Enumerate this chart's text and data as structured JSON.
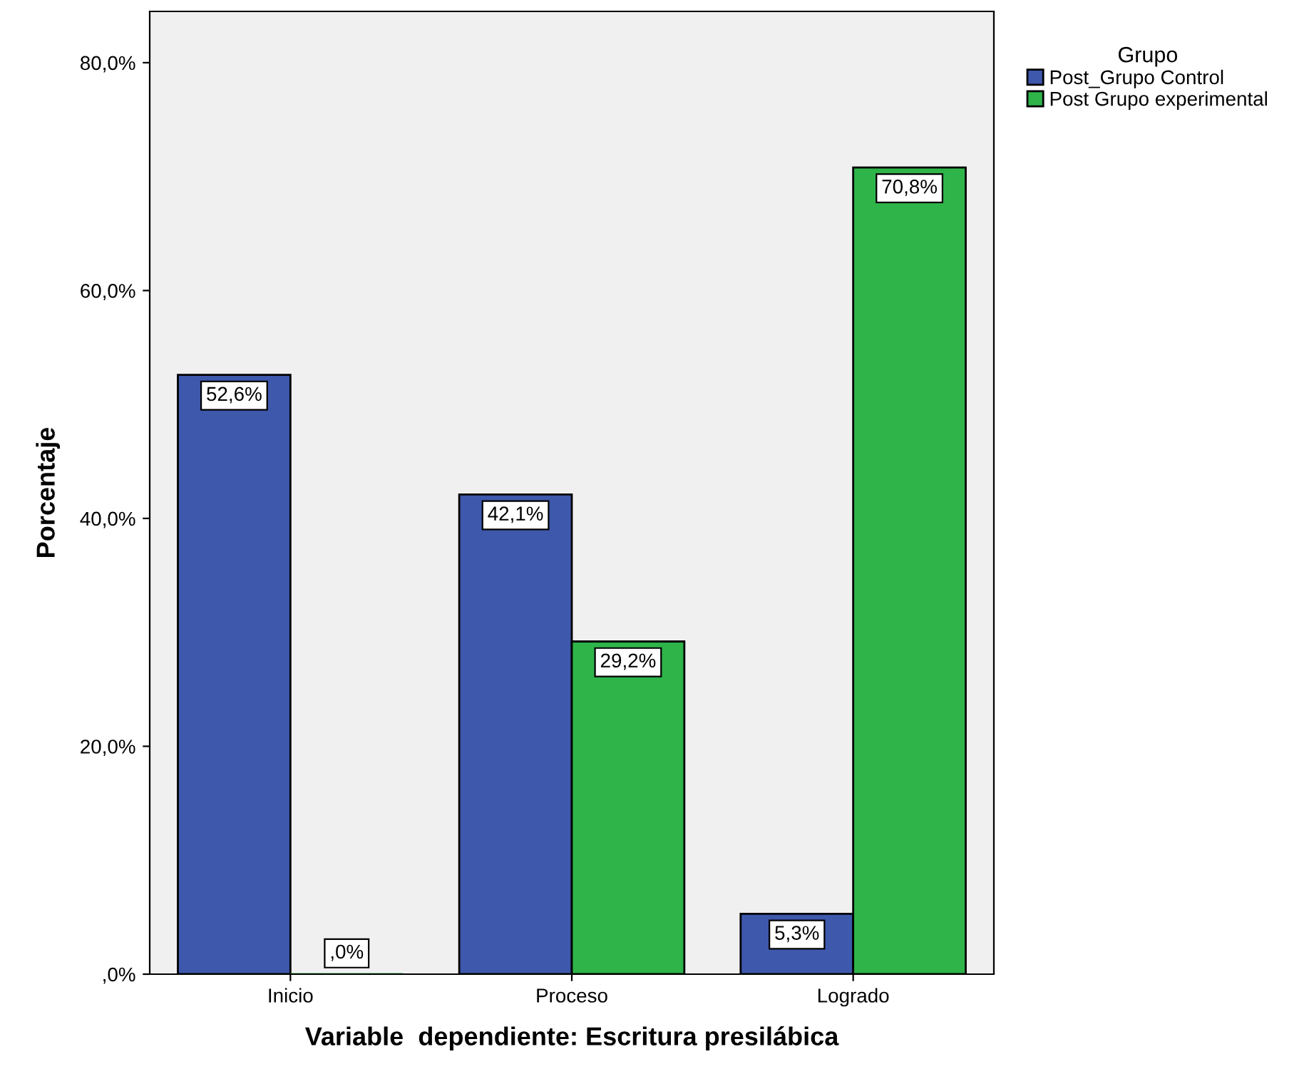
{
  "chart_data": {
    "type": "bar",
    "categories": [
      "Inicio",
      "Proceso",
      "Logrado"
    ],
    "xlabel": "Variable  dependiente: Escritura presilábica",
    "ylabel": "Porcentaje",
    "legend_title": "Grupo",
    "legend": "top right",
    "grid": false,
    "ylim": [
      0,
      84.5
    ],
    "yticks": [
      {
        "value": 0,
        "label": ",0%"
      },
      {
        "value": 20,
        "label": "20,0%"
      },
      {
        "value": 40,
        "label": "40,0%"
      },
      {
        "value": 60,
        "label": "60,0%"
      },
      {
        "value": 80,
        "label": "80,0%"
      }
    ],
    "series": [
      {
        "name": "Post_Grupo Control",
        "color": "#3e58ac",
        "values": [
          52.6,
          42.1,
          5.3
        ],
        "value_labels": [
          "52,6%",
          "42,1%",
          "5,3%"
        ]
      },
      {
        "name": "Post Grupo experimental",
        "color": "#2fb44a",
        "values": [
          0,
          29.2,
          70.8
        ],
        "value_labels": [
          ",0%",
          "29,2%",
          "70,8%"
        ]
      }
    ]
  }
}
